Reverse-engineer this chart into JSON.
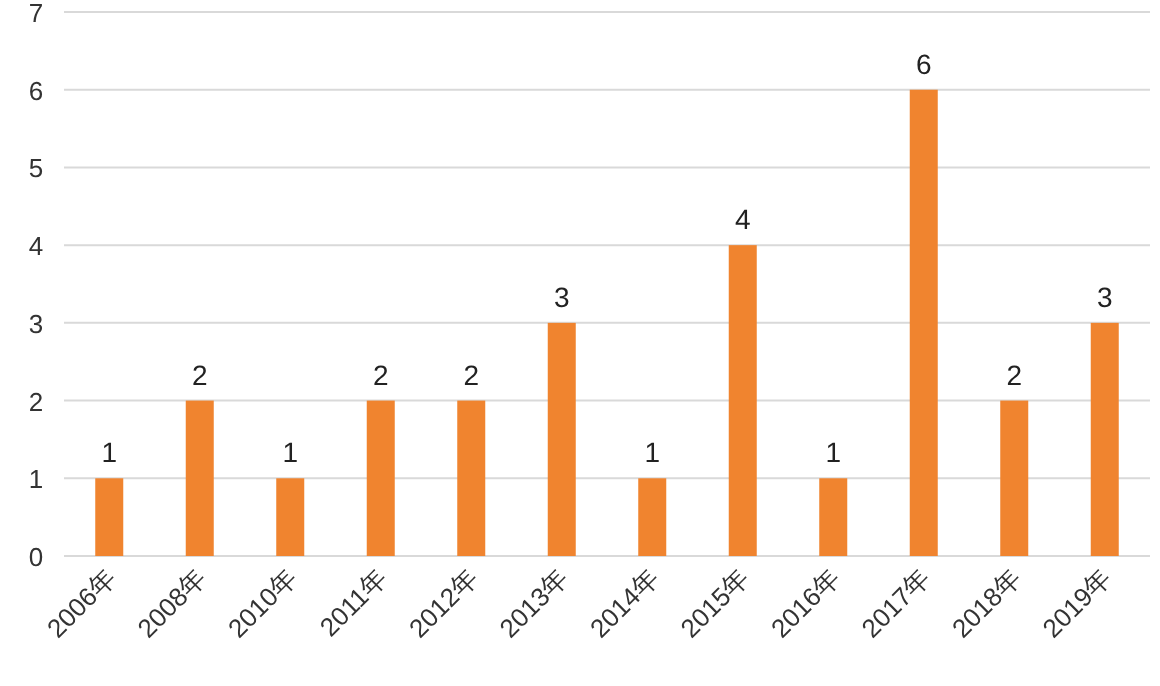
{
  "chart_data": {
    "type": "bar",
    "categories": [
      "2006年",
      "2008年",
      "2010年",
      "2011年",
      "2012年",
      "2013年",
      "2014年",
      "2015年",
      "2016年",
      "2017年",
      "2018年",
      "2019年"
    ],
    "values": [
      1,
      2,
      1,
      2,
      2,
      3,
      1,
      4,
      1,
      6,
      2,
      3
    ],
    "color": "#f0842f",
    "ylim": [
      0,
      7
    ],
    "yticks": [
      0,
      1,
      2,
      3,
      4,
      5,
      6,
      7
    ],
    "grid": "y",
    "data_labels": true
  }
}
